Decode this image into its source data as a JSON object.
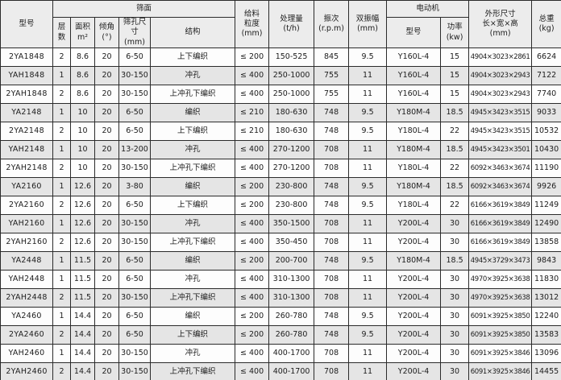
{
  "colors": {
    "border": "#2b2b2b",
    "header_bg": "#ececec",
    "band_bg": "#e5e5e5",
    "text": "#1c1c1c"
  },
  "table": {
    "header": {
      "model": "型号",
      "screen_surface": "筛面",
      "layers": "层\n数",
      "area": "面积\nm²",
      "incline": "倾角\n(°)",
      "mesh": "筛孔尺寸\n(mm)",
      "structure": "结构",
      "feed": "给料\n粒度\n(mm)",
      "capacity": "处理量\n(t/h)",
      "vibration": "振次\n(r.p.m)",
      "amplitude": "双振幅\n(mm)",
      "motor": "电动机",
      "motor_model": "型号",
      "motor_power": "功率\n(kw)",
      "dimensions": "外形尺寸\n长×宽×高\n(mm)",
      "weight": "总重\n(kg)"
    },
    "column_keys": [
      "model",
      "layers",
      "area",
      "incline",
      "mesh",
      "structure",
      "feed",
      "capacity",
      "vibration",
      "amplitude",
      "motor-model",
      "power",
      "dimensions",
      "weight"
    ],
    "rows": [
      [
        "2YA1848",
        "2",
        "8.6",
        "20",
        "6-50",
        "上下编织",
        "≤ 200",
        "150-525",
        "845",
        "9.5",
        "Y160L-4",
        "15",
        "4904×3023×2861",
        "6624"
      ],
      [
        "YAH1848",
        "1",
        "8.6",
        "20",
        "30-150",
        "冲孔",
        "≤ 400",
        "250-1000",
        "755",
        "11",
        "Y160L-4",
        "15",
        "4904×3023×2943",
        "7122"
      ],
      [
        "2YAH1848",
        "2",
        "8.6",
        "20",
        "30-150",
        "上冲孔下编织",
        "≤ 400",
        "250-1000",
        "755",
        "11",
        "Y160L-4",
        "15",
        "4904×3023×2943",
        "7740"
      ],
      [
        "YA2148",
        "1",
        "10",
        "20",
        "6-50",
        "编织",
        "≤ 210",
        "180-630",
        "748",
        "9.5",
        "Y180M-4",
        "18.5",
        "4945×3423×3515",
        "9033"
      ],
      [
        "2YA2148",
        "2",
        "10",
        "20",
        "6-50",
        "上下编织",
        "≤ 210",
        "180-630",
        "748",
        "9.5",
        "Y180L-4",
        "22",
        "4945×3423×3515",
        "10532"
      ],
      [
        "YAH2148",
        "1",
        "10",
        "20",
        "13-200",
        "冲孔",
        "≤ 400",
        "270-1200",
        "708",
        "11",
        "Y180M-4",
        "18.5",
        "4945×3423×3501",
        "10430"
      ],
      [
        "2YAH2148",
        "2",
        "10",
        "20",
        "30-150",
        "上冲孔下编织",
        "≤ 400",
        "270-1200",
        "708",
        "11",
        "Y180L-4",
        "22",
        "6092×3463×3674",
        "11190"
      ],
      [
        "YA2160",
        "1",
        "12.6",
        "20",
        "3-80",
        "编织",
        "≤ 200",
        "230-800",
        "748",
        "9.5",
        "Y180M-4",
        "18.5",
        "6092×3463×3674",
        "9926"
      ],
      [
        "2YA2160",
        "2",
        "12.6",
        "20",
        "6-50",
        "上下编织",
        "≤ 200",
        "230-800",
        "748",
        "9.5",
        "Y180L-4",
        "22",
        "6166×3619×3849",
        "11249"
      ],
      [
        "YAH2160",
        "1",
        "12.6",
        "20",
        "30-150",
        "冲孔",
        "≤ 400",
        "350-1500",
        "708",
        "11",
        "Y200L-4",
        "30",
        "6166×3619×3849",
        "12490"
      ],
      [
        "2YAH2160",
        "2",
        "12.6",
        "20",
        "30-150",
        "上冲孔下编织",
        "≤ 400",
        "350-450",
        "708",
        "11",
        "Y200L-4",
        "30",
        "6166×3619×3849",
        "13858"
      ],
      [
        "YA2448",
        "1",
        "11.5",
        "20",
        "6-50",
        "编织",
        "≤ 200",
        "200-700",
        "748",
        "9.5",
        "Y180M-4",
        "18.5",
        "4945×3729×3473",
        "9843"
      ],
      [
        "YAH2448",
        "1",
        "11.5",
        "20",
        "6-50",
        "冲孔",
        "≤ 400",
        "310-1300",
        "708",
        "11",
        "Y200L-4",
        "30",
        "4970×3925×3638",
        "11830"
      ],
      [
        "2YAH2448",
        "2",
        "11.5",
        "20",
        "30-150",
        "上冲孔下编织",
        "≤ 400",
        "310-1300",
        "708",
        "11",
        "Y200L-4",
        "30",
        "4970×3925×3638",
        "13012"
      ],
      [
        "YA2460",
        "1",
        "14.4",
        "20",
        "6-50",
        "编织",
        "≤ 200",
        "260-780",
        "748",
        "9.5",
        "Y200L-4",
        "30",
        "6091×3925×3850",
        "12240"
      ],
      [
        "2YA2460",
        "2",
        "14.4",
        "20",
        "6-50",
        "上下编织",
        "≤ 200",
        "260-780",
        "748",
        "9.5",
        "Y200L-4",
        "30",
        "6091×3925×3850",
        "13583"
      ],
      [
        "YAH2460",
        "1",
        "14.4",
        "20",
        "30-150",
        "冲孔",
        "≤ 400",
        "400-1700",
        "708",
        "11",
        "Y200L-4",
        "30",
        "6091×3925×3846",
        "13096"
      ],
      [
        "2YAH2460",
        "2",
        "14.4",
        "20",
        "30-150",
        "上冲孔下编织",
        "≤ 400",
        "400-1700",
        "708",
        "11",
        "Y200L-4",
        "30",
        "6091×3925×3846",
        "14455"
      ]
    ]
  }
}
